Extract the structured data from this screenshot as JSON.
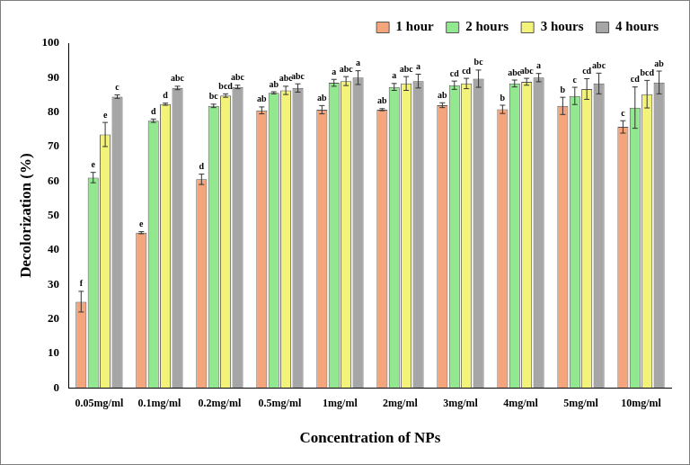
{
  "chart_data": {
    "type": "bar",
    "x_label": "Concentration of NPs",
    "y_label": "Decolorization (%)",
    "categories": [
      "0.05mg/ml",
      "0.1mg/ml",
      "0.2mg/ml",
      "0.5mg/ml",
      "1mg/ml",
      "2mg/ml",
      "3mg/ml",
      "4mg/ml",
      "5mg/ml",
      "10mg/ml"
    ],
    "ylim": [
      0,
      100
    ],
    "yticks": [
      0,
      10,
      20,
      30,
      40,
      50,
      60,
      70,
      80,
      90,
      100
    ],
    "grid": false,
    "legend": "top-right",
    "series": [
      {
        "name": "1 hour",
        "color": "#f4a57c",
        "values": [
          25,
          45,
          60.5,
          80.5,
          80.7,
          80.7,
          82,
          80.8,
          81.8,
          75.7
        ],
        "errors": [
          3,
          0.3,
          1.5,
          1,
          1.2,
          0.3,
          0.7,
          1.2,
          2.5,
          1.8
        ],
        "annotations": [
          "f",
          "e",
          "d",
          "ab",
          "ab",
          "ab",
          "ab",
          "b",
          "b",
          "c"
        ]
      },
      {
        "name": "2 hours",
        "color": "#92e88f",
        "values": [
          61,
          77.5,
          81.8,
          85.6,
          88.5,
          87.3,
          87.8,
          88.3,
          84.7,
          81.3
        ],
        "errors": [
          1.5,
          0.5,
          0.5,
          0.3,
          1,
          1,
          1.2,
          1,
          2.5,
          6
        ],
        "annotations": [
          "e",
          "d",
          "bc",
          "ab",
          "a",
          "a",
          "cd",
          "abc",
          "c",
          "cd"
        ]
      },
      {
        "name": "3 hours",
        "color": "#f3f37a",
        "values": [
          73.5,
          82.3,
          84.8,
          86.3,
          89,
          88.3,
          88.3,
          88.8,
          86.7,
          85.2
        ],
        "errors": [
          3.5,
          0.3,
          0.5,
          1.2,
          1.3,
          2,
          1.5,
          1,
          3,
          4
        ],
        "annotations": [
          "e",
          "d",
          "bcd",
          "abc",
          "abc",
          "abc",
          "cd",
          "abc",
          "cd",
          "bcd"
        ]
      },
      {
        "name": "4 hours",
        "color": "#a6a6a6",
        "values": [
          84.5,
          87,
          87.3,
          87,
          90,
          89,
          89.7,
          90,
          88.3,
          88.6
        ],
        "errors": [
          0.5,
          0.5,
          0.5,
          1.2,
          2,
          2,
          2.5,
          1.2,
          3,
          3.3
        ],
        "annotations": [
          "c",
          "abc",
          "abc",
          "abc",
          "a",
          "a",
          "bc",
          "a",
          "abc",
          "ab"
        ]
      }
    ]
  }
}
